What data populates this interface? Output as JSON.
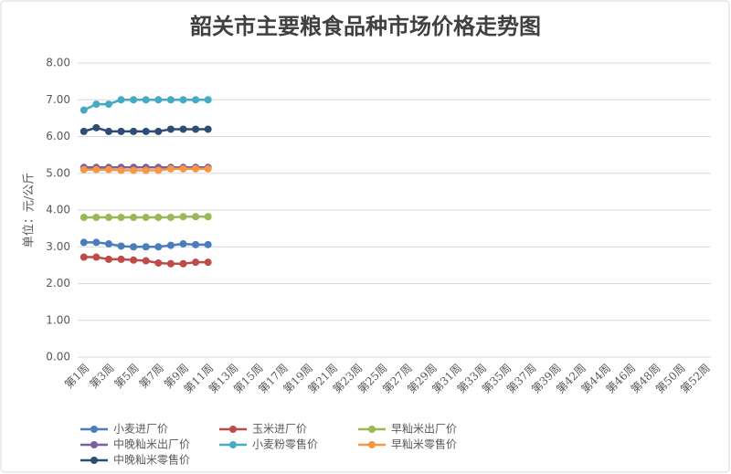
{
  "chart_data": {
    "type": "line",
    "title": "韶关市主要粮食品种市场价格走势图",
    "y_label": "单位：元/公斤",
    "categories": [
      "第1周",
      null,
      "第3周",
      null,
      "第5周",
      null,
      "第7周",
      null,
      "第9周",
      null,
      "第11周",
      null,
      "第13周",
      null,
      "第15周",
      null,
      "第17周",
      null,
      "第19周",
      null,
      "第21周",
      null,
      "第23周",
      null,
      "第25周",
      null,
      "第27周",
      null,
      "第29周",
      null,
      "第31周",
      null,
      "第33周",
      null,
      "第35周",
      null,
      "第37周",
      null,
      "第39周",
      null,
      "第42周",
      null,
      "第44周",
      null,
      "第46周",
      null,
      "第48周",
      null,
      "第50周",
      null,
      "第52周"
    ],
    "series": [
      {
        "name": "小麦进厂价",
        "color": "#4a7ebb",
        "values": [
          3.12,
          3.12,
          3.08,
          3.02,
          3.0,
          3.0,
          3.0,
          3.04,
          3.08,
          3.06,
          3.06,
          null,
          null,
          null,
          null,
          null,
          null,
          null,
          null,
          null,
          null,
          null,
          null,
          null,
          null,
          null,
          null,
          null,
          null,
          null,
          null,
          null,
          null,
          null,
          null,
          null,
          null,
          null,
          null,
          null,
          null,
          null,
          null,
          null,
          null,
          null,
          null,
          null,
          null,
          null,
          null
        ]
      },
      {
        "name": "玉米进厂价",
        "color": "#be4b48",
        "values": [
          2.72,
          2.72,
          2.66,
          2.66,
          2.64,
          2.62,
          2.56,
          2.54,
          2.54,
          2.58,
          2.58,
          null,
          null,
          null,
          null,
          null,
          null,
          null,
          null,
          null,
          null,
          null,
          null,
          null,
          null,
          null,
          null,
          null,
          null,
          null,
          null,
          null,
          null,
          null,
          null,
          null,
          null,
          null,
          null,
          null,
          null,
          null,
          null,
          null,
          null,
          null,
          null,
          null,
          null,
          null,
          null
        ]
      },
      {
        "name": "早籼米出厂价",
        "color": "#98b954",
        "values": [
          3.8,
          3.8,
          3.8,
          3.8,
          3.8,
          3.8,
          3.8,
          3.8,
          3.82,
          3.82,
          3.82,
          null,
          null,
          null,
          null,
          null,
          null,
          null,
          null,
          null,
          null,
          null,
          null,
          null,
          null,
          null,
          null,
          null,
          null,
          null,
          null,
          null,
          null,
          null,
          null,
          null,
          null,
          null,
          null,
          null,
          null,
          null,
          null,
          null,
          null,
          null,
          null,
          null,
          null,
          null,
          null
        ]
      },
      {
        "name": "中晚籼米出厂价",
        "color": "#7d60a0",
        "values": [
          5.16,
          5.16,
          5.16,
          5.16,
          5.16,
          5.16,
          5.16,
          5.16,
          5.16,
          5.16,
          5.16,
          null,
          null,
          null,
          null,
          null,
          null,
          null,
          null,
          null,
          null,
          null,
          null,
          null,
          null,
          null,
          null,
          null,
          null,
          null,
          null,
          null,
          null,
          null,
          null,
          null,
          null,
          null,
          null,
          null,
          null,
          null,
          null,
          null,
          null,
          null,
          null,
          null,
          null,
          null,
          null
        ]
      },
      {
        "name": "小麦粉零售价",
        "color": "#46aac5",
        "values": [
          6.72,
          6.88,
          6.88,
          7.0,
          7.0,
          7.0,
          7.0,
          7.0,
          7.0,
          7.0,
          7.0,
          null,
          null,
          null,
          null,
          null,
          null,
          null,
          null,
          null,
          null,
          null,
          null,
          null,
          null,
          null,
          null,
          null,
          null,
          null,
          null,
          null,
          null,
          null,
          null,
          null,
          null,
          null,
          null,
          null,
          null,
          null,
          null,
          null,
          null,
          null,
          null,
          null,
          null,
          null,
          null
        ]
      },
      {
        "name": "早籼米零售价",
        "color": "#f79646",
        "values": [
          5.1,
          5.1,
          5.1,
          5.08,
          5.08,
          5.08,
          5.08,
          5.12,
          5.12,
          5.12,
          5.12,
          null,
          null,
          null,
          null,
          null,
          null,
          null,
          null,
          null,
          null,
          null,
          null,
          null,
          null,
          null,
          null,
          null,
          null,
          null,
          null,
          null,
          null,
          null,
          null,
          null,
          null,
          null,
          null,
          null,
          null,
          null,
          null,
          null,
          null,
          null,
          null,
          null,
          null,
          null,
          null
        ]
      },
      {
        "name": "中晚籼米零售价",
        "color": "#2c4d75",
        "values": [
          6.14,
          6.24,
          6.14,
          6.14,
          6.14,
          6.14,
          6.14,
          6.2,
          6.2,
          6.2,
          6.2,
          null,
          null,
          null,
          null,
          null,
          null,
          null,
          null,
          null,
          null,
          null,
          null,
          null,
          null,
          null,
          null,
          null,
          null,
          null,
          null,
          null,
          null,
          null,
          null,
          null,
          null,
          null,
          null,
          null,
          null,
          null,
          null,
          null,
          null,
          null,
          null,
          null,
          null,
          null,
          null
        ]
      }
    ],
    "ylim": [
      0,
      8
    ],
    "yticks": [
      {
        "value": 0,
        "label": "0.00"
      },
      {
        "value": 1,
        "label": "1.00"
      },
      {
        "value": 2,
        "label": "2.00"
      },
      {
        "value": 3,
        "label": "3.00"
      },
      {
        "value": 4,
        "label": "4.00"
      },
      {
        "value": 5,
        "label": "5.00"
      },
      {
        "value": 6,
        "label": "6.00"
      },
      {
        "value": 7,
        "label": "7.00"
      },
      {
        "value": 8,
        "label": "8.00"
      }
    ],
    "grid": true,
    "legend": "bottom"
  }
}
